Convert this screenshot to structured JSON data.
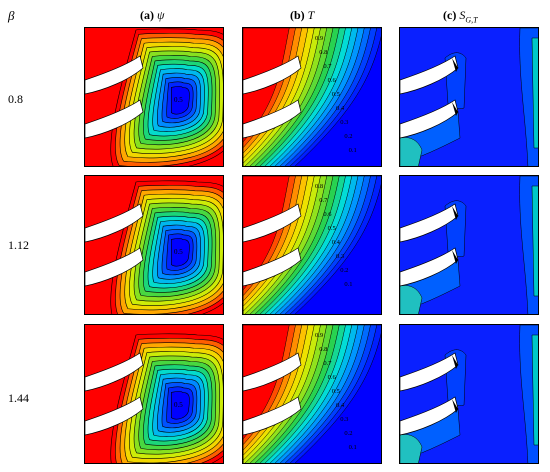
{
  "header": {
    "beta_symbol": "β",
    "columns": [
      {
        "tag": "(a)",
        "symbol": "ψ"
      },
      {
        "tag": "(b)",
        "symbol": "T"
      },
      {
        "tag": "(c)",
        "symbol": "S",
        "subscript": "G,T"
      }
    ]
  },
  "rows": [
    {
      "beta": "0.8",
      "psi_label": "0.5",
      "T_labels": [
        "0.9",
        "0.8",
        "0.7",
        "0.6",
        "0.5",
        "0.4",
        "0.3",
        "0.2",
        "0.1"
      ]
    },
    {
      "beta": "1.12",
      "psi_label": "0.5",
      "T_labels": [
        "0.8",
        "0.7",
        "0.6",
        "0.5",
        "0.4",
        "0.3",
        "0.2",
        "0.1"
      ]
    },
    {
      "beta": "1.44",
      "psi_label": "0.5",
      "T_labels": [
        "0.9",
        "0.8",
        "0.7",
        "0.6",
        "0.5",
        "0.4",
        "0.3",
        "0.2",
        "0.1"
      ]
    }
  ],
  "colors": {
    "hot": "#ff0000",
    "cold": "#0000ff",
    "contour_line": "#000000",
    "fin": "#ffffff"
  }
}
